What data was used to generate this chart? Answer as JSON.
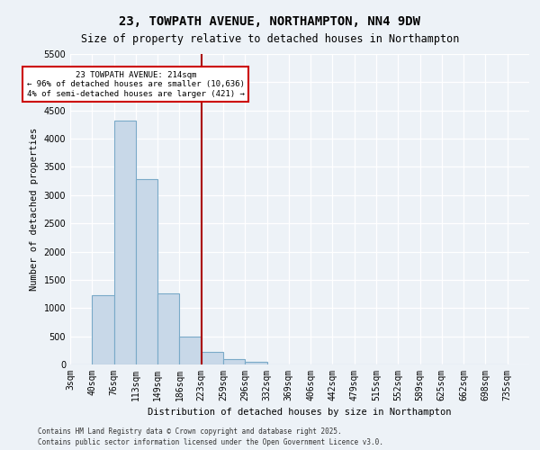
{
  "title_line1": "23, TOWPATH AVENUE, NORTHAMPTON, NN4 9DW",
  "title_line2": "Size of property relative to detached houses in Northampton",
  "xlabel": "Distribution of detached houses by size in Northampton",
  "ylabel": "Number of detached properties",
  "bin_labels": [
    "3sqm",
    "40sqm",
    "76sqm",
    "113sqm",
    "149sqm",
    "186sqm",
    "223sqm",
    "259sqm",
    "296sqm",
    "332sqm",
    "369sqm",
    "406sqm",
    "442sqm",
    "479sqm",
    "515sqm",
    "552sqm",
    "589sqm",
    "625sqm",
    "662sqm",
    "698sqm",
    "735sqm"
  ],
  "bar_heights": [
    0,
    1230,
    4320,
    3280,
    1260,
    500,
    230,
    100,
    50,
    0,
    0,
    0,
    0,
    0,
    0,
    0,
    0,
    0,
    0,
    0
  ],
  "bar_color": "#c8d8e8",
  "bar_edge_color": "#7aaac8",
  "vline_x": 6.0,
  "annotation_text": "23 TOWPATH AVENUE: 214sqm\n← 96% of detached houses are smaller (10,636)\n4% of semi-detached houses are larger (421) →",
  "annot_box_facecolor": "#ffffff",
  "annot_box_edgecolor": "#cc0000",
  "vline_color": "#aa0000",
  "ylim_max": 5500,
  "yticks": [
    0,
    500,
    1000,
    1500,
    2000,
    2500,
    3000,
    3500,
    4000,
    4500,
    5000,
    5500
  ],
  "footer_line1": "Contains HM Land Registry data © Crown copyright and database right 2025.",
  "footer_line2": "Contains public sector information licensed under the Open Government Licence v3.0.",
  "bg_color": "#edf2f7"
}
